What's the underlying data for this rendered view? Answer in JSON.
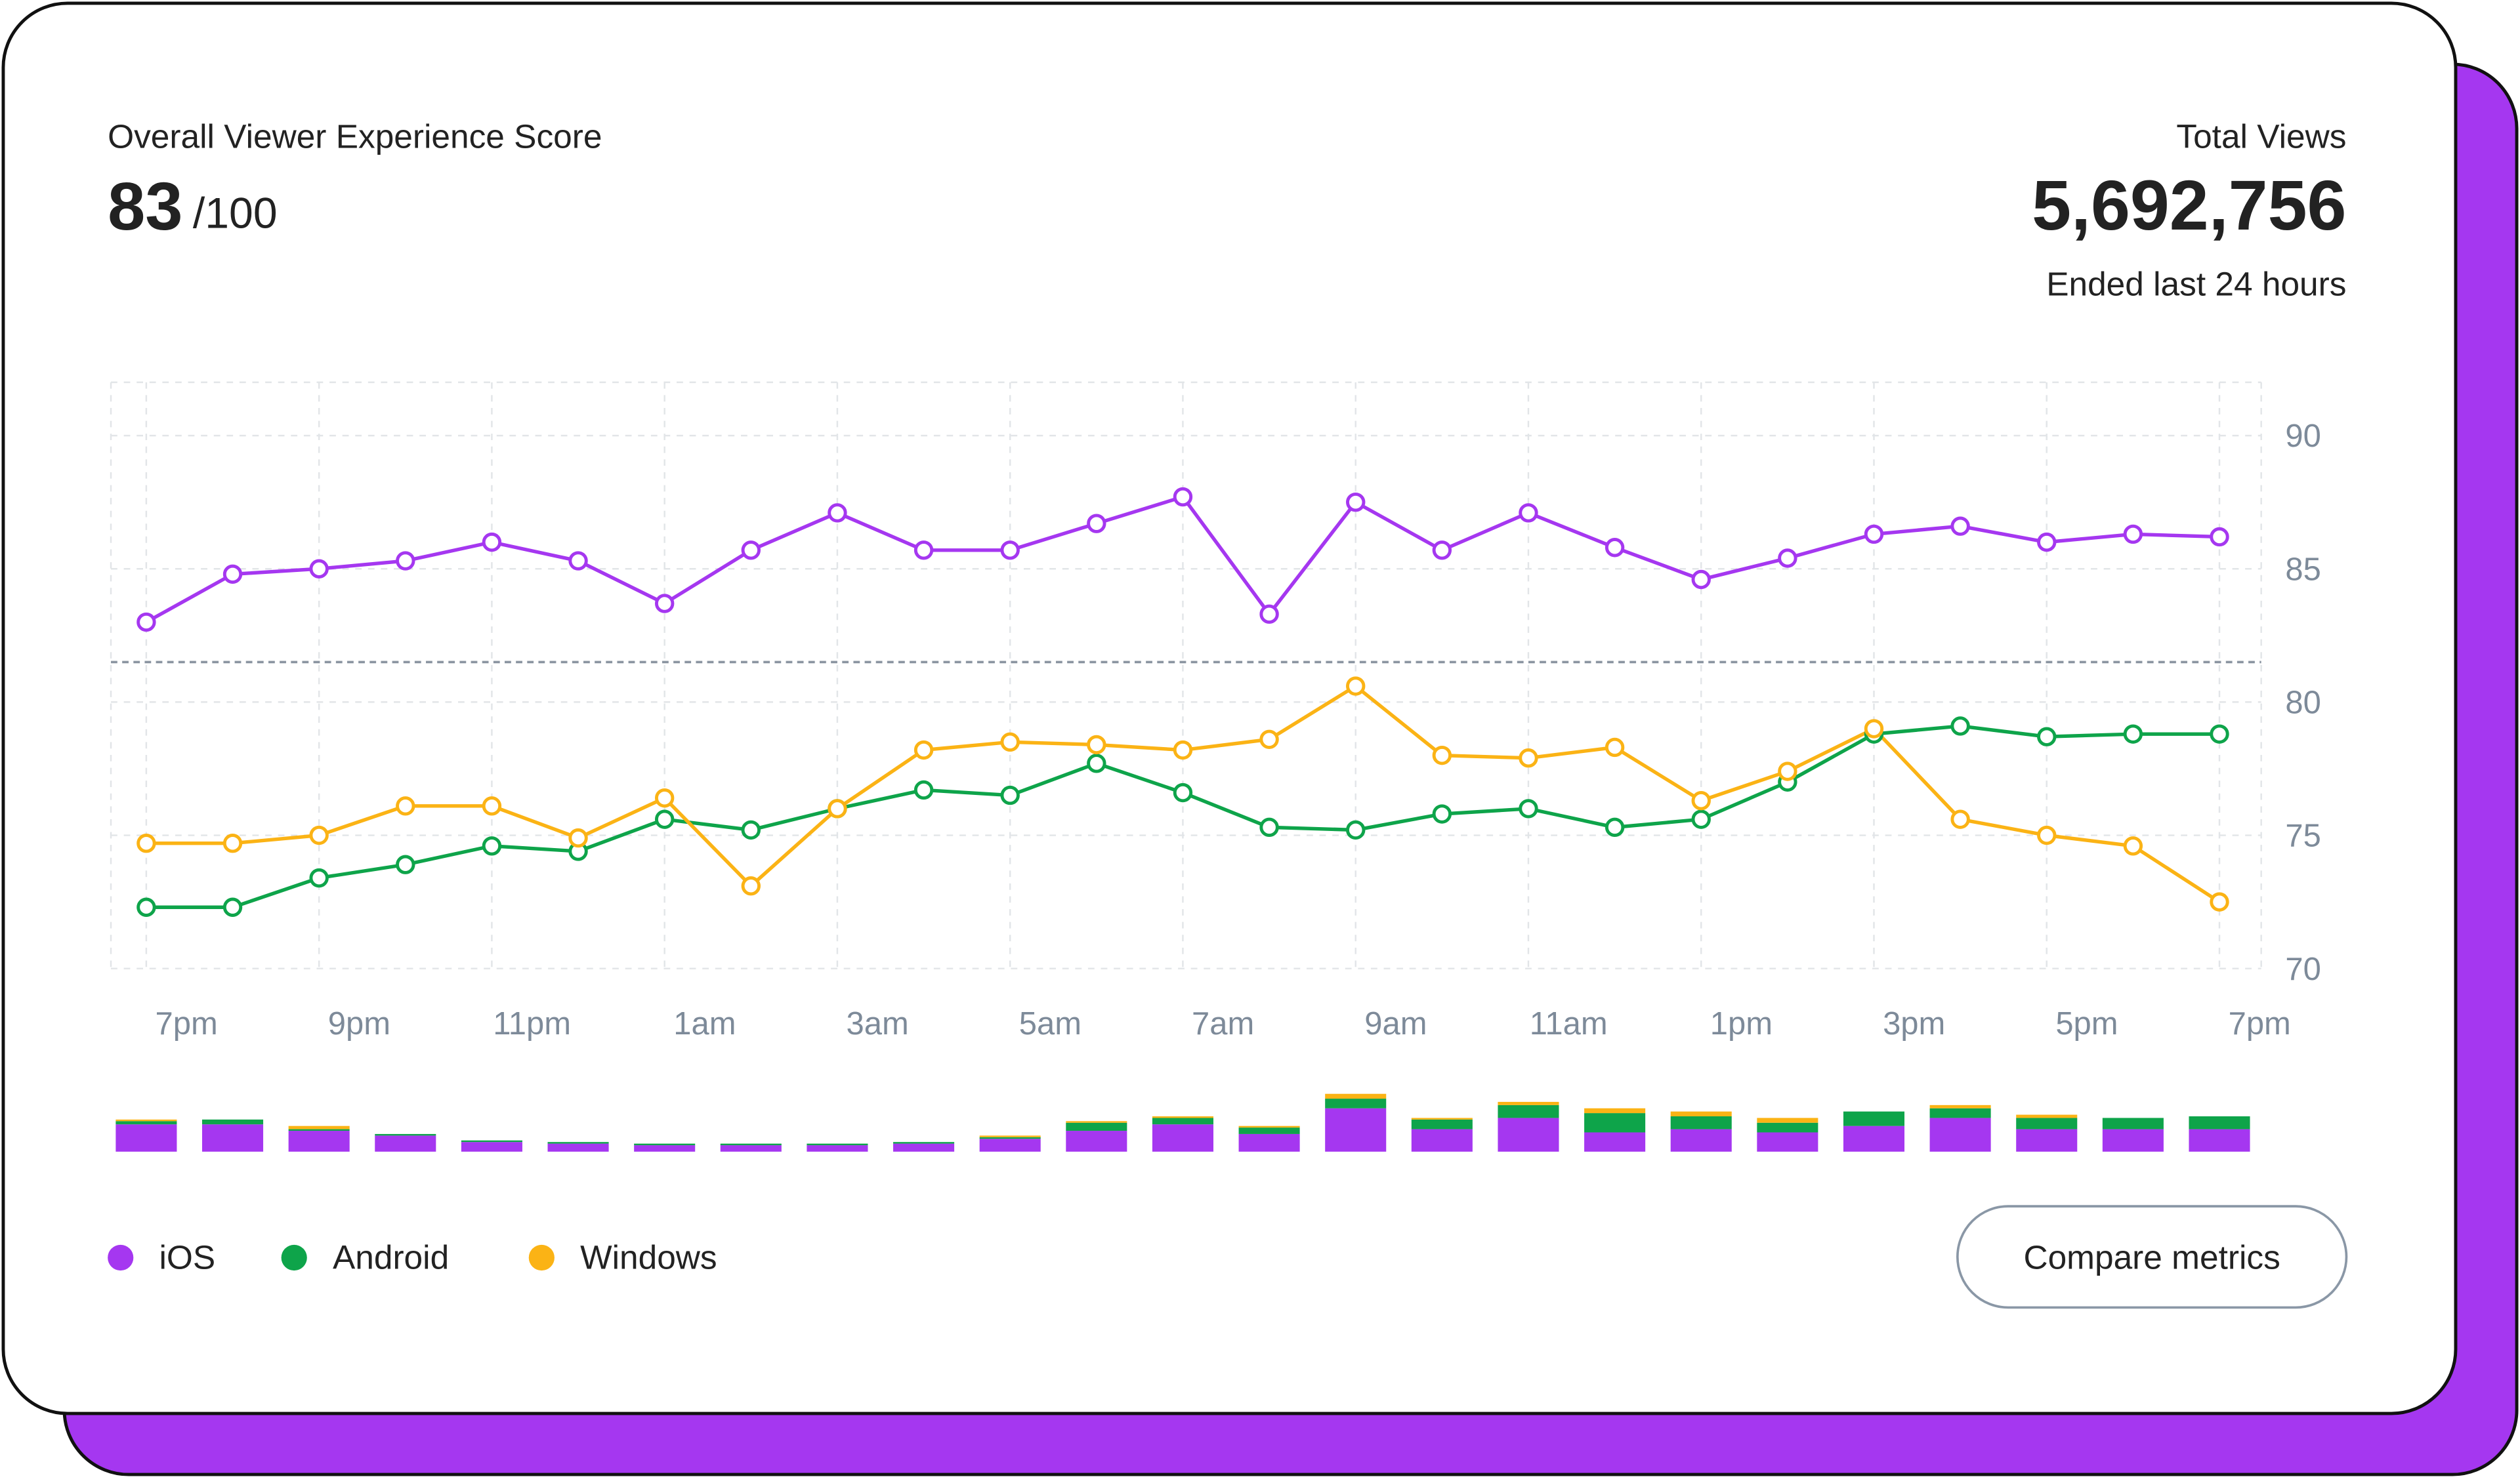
{
  "header": {
    "score_title": "Overall Viewer Experience Score",
    "score": "83",
    "score_suffix": "/100",
    "views_title": "Total Views",
    "views": "5,692,756",
    "views_subtitle": "Ended last 24 hours"
  },
  "button": {
    "label": "Compare metrics"
  },
  "chart_data": {
    "type": "line",
    "categories": [
      "7pm",
      null,
      "9pm",
      null,
      "11pm",
      null,
      "1am",
      null,
      "3am",
      null,
      "5am",
      null,
      "7am",
      null,
      "9am",
      null,
      "11am",
      null,
      "1pm",
      null,
      "3pm",
      null,
      "5pm",
      null,
      "7pm"
    ],
    "ylim": [
      70,
      92
    ],
    "yticks": [
      70,
      75,
      80,
      85,
      90
    ],
    "grid": true,
    "reference_line": 81.5,
    "series": [
      {
        "name": "iOS",
        "color": "#a537f0",
        "values": [
          83.0,
          84.8,
          85.0,
          85.3,
          86.0,
          85.3,
          83.7,
          85.7,
          87.1,
          85.7,
          85.7,
          86.7,
          87.7,
          83.3,
          87.5,
          85.7,
          87.1,
          85.8,
          84.6,
          85.4,
          86.3,
          86.6,
          86.0,
          86.3,
          86.2
        ],
        "bar_values": [
          17,
          17,
          13,
          10,
          6,
          5,
          4,
          4,
          4,
          5,
          8,
          13,
          17,
          11,
          27,
          14,
          21,
          12,
          14,
          12,
          16,
          21,
          14,
          14,
          14
        ]
      },
      {
        "name": "Android",
        "color": "#0ea44a",
        "values": [
          72.3,
          72.3,
          73.4,
          73.9,
          74.6,
          74.4,
          75.6,
          75.2,
          76.0,
          76.7,
          76.5,
          77.7,
          76.6,
          75.3,
          75.2,
          75.8,
          76.0,
          75.3,
          75.6,
          77.0,
          78.8,
          79.1,
          78.7,
          78.8,
          78.8
        ],
        "bar_values": [
          2,
          3,
          1,
          1,
          1,
          1,
          1,
          1,
          1,
          1,
          1,
          5,
          4,
          4,
          6,
          6,
          8,
          12,
          8,
          6,
          9,
          6,
          7,
          7,
          8
        ]
      },
      {
        "name": "Windows",
        "color": "#fbb315",
        "values": [
          74.7,
          74.7,
          75.0,
          76.1,
          76.1,
          74.9,
          76.4,
          73.1,
          76.0,
          78.2,
          78.5,
          78.4,
          78.2,
          78.6,
          80.6,
          78.0,
          77.9,
          78.3,
          76.3,
          77.4,
          79.0,
          75.6,
          75.0,
          74.6,
          72.5
        ],
        "bar_values": [
          1,
          0,
          2,
          0,
          0,
          0,
          0,
          0,
          0,
          0,
          1,
          1,
          1,
          1,
          3,
          1,
          2,
          3,
          3,
          3,
          0,
          2,
          2,
          0,
          0
        ]
      }
    ],
    "bar_ylim": [
      0,
      40
    ]
  }
}
